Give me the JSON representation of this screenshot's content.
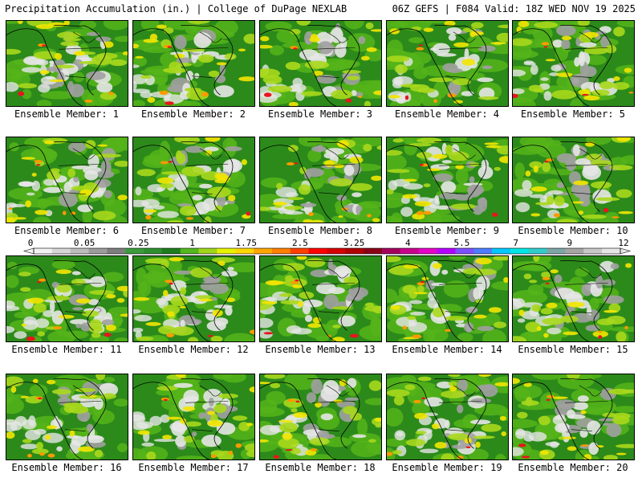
{
  "header": {
    "title_left": "Precipitation Accumulation (in.) | College of DuPage NEXLAB",
    "title_right": "06Z GEFS | F084 Valid: 18Z WED NOV 19 2025"
  },
  "legend": {
    "tick_labels": [
      "0",
      "0.05",
      "0.25",
      "1",
      "1.75",
      "2.5",
      "3.25",
      "4",
      "5.5",
      "7",
      "9",
      "12"
    ],
    "colors": [
      "#f2f2f2",
      "#d6d6d6",
      "#bdbdbd",
      "#9c9c9c",
      "#7e7e7e",
      "#3b9c3b",
      "#2f8f2f",
      "#1e7d1e",
      "#54b81f",
      "#9fd61a",
      "#e8f200",
      "#ffd700",
      "#ffa500",
      "#ff7f00",
      "#ff4000",
      "#ff0000",
      "#d60000",
      "#b00000",
      "#8a0016",
      "#a3005e",
      "#c8008c",
      "#e600c8",
      "#b400ff",
      "#7d50ff",
      "#4f7dff",
      "#00c8ff",
      "#00e6e6",
      "#33cccc",
      "#7fa6a6",
      "#a6a6a6",
      "#c8c8c8",
      "#e6e6e6"
    ]
  },
  "map_colors": {
    "ocean_base": "#2c8a1a",
    "light_green": "#55b41a",
    "yellow_green": "#a8d81c",
    "yellow": "#f2e600",
    "orange": "#ff9a00",
    "red": "#e8141e",
    "gray_light": "#e6e6e6",
    "gray_mid": "#a0a0a0",
    "coastline": "#000000"
  },
  "members": [
    {
      "label": "Ensemble Member: 1"
    },
    {
      "label": "Ensemble Member: 2"
    },
    {
      "label": "Ensemble Member: 3"
    },
    {
      "label": "Ensemble Member: 4"
    },
    {
      "label": "Ensemble Member: 5"
    },
    {
      "label": "Ensemble Member: 6"
    },
    {
      "label": "Ensemble Member: 7"
    },
    {
      "label": "Ensemble Member: 8"
    },
    {
      "label": "Ensemble Member: 9"
    },
    {
      "label": "Ensemble Member: 10"
    },
    {
      "label": "Ensemble Member: 11"
    },
    {
      "label": "Ensemble Member: 12"
    },
    {
      "label": "Ensemble Member: 13"
    },
    {
      "label": "Ensemble Member: 14"
    },
    {
      "label": "Ensemble Member: 15"
    },
    {
      "label": "Ensemble Member: 16"
    },
    {
      "label": "Ensemble Member: 17"
    },
    {
      "label": "Ensemble Member: 18"
    },
    {
      "label": "Ensemble Member: 19"
    },
    {
      "label": "Ensemble Member: 20"
    }
  ]
}
